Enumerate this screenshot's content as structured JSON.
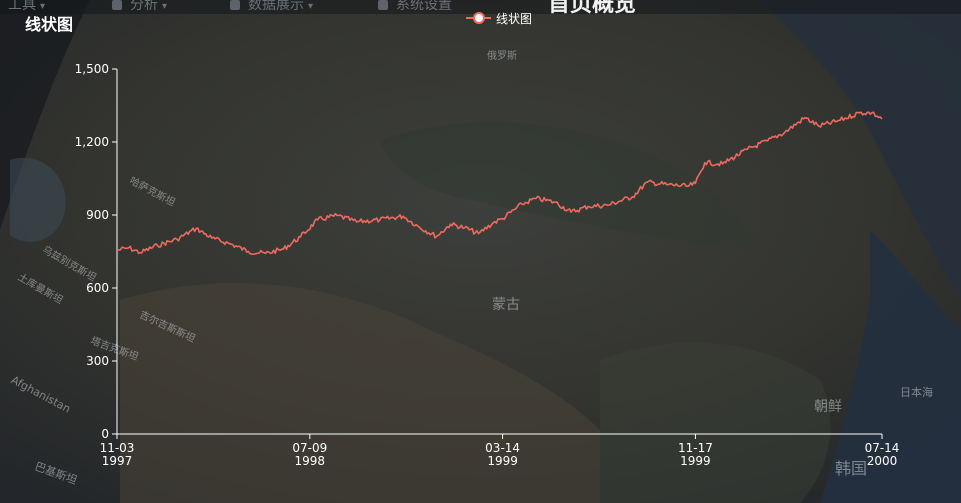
{
  "app": {
    "page_title": "首页概览",
    "menu": [
      {
        "label": "工具",
        "icon": "toolbox-icon"
      },
      {
        "label": "分析",
        "icon": "wrench-icon"
      },
      {
        "label": "数据展示",
        "icon": "bar-chart-icon"
      },
      {
        "label": "系统设置",
        "icon": "layers-icon"
      }
    ]
  },
  "map_labels": [
    "俄罗斯",
    "蒙古",
    "朝鲜",
    "韩国",
    "日本海",
    "Afghanistan",
    "哈萨克斯坦",
    "吉尔吉斯斯坦",
    "塔吉克斯坦",
    "巴基斯坦",
    "乌兹别克斯坦",
    "土库曼斯坦"
  ],
  "colors": {
    "series": "#ee6a5e",
    "axis": "#ffffff"
  },
  "chart_data": {
    "type": "line",
    "title": "线状图",
    "legend": [
      "线状图"
    ],
    "legend_position": "top-center",
    "x_start": "1997-11-03",
    "x_end": "2000-07-14",
    "xticks": [
      {
        "date": "1997-11-03",
        "line1": "11-03",
        "line2": "1997"
      },
      {
        "date": "1998-07-09",
        "line1": "07-09",
        "line2": "1998"
      },
      {
        "date": "1999-03-14",
        "line1": "03-14",
        "line2": "1999"
      },
      {
        "date": "1999-11-17",
        "line1": "11-17",
        "line2": "1999"
      },
      {
        "date": "2000-07-14",
        "line1": "07-14",
        "line2": "2000"
      }
    ],
    "ylim": [
      0,
      1500
    ],
    "yticks": [
      "0",
      "300",
      "600",
      "900",
      "1,200",
      "1,500"
    ],
    "grid": false,
    "series": [
      {
        "name": "线状图",
        "points": [
          [
            "1997-11-03",
            755
          ],
          [
            "1997-11-18",
            765
          ],
          [
            "1997-12-03",
            745
          ],
          [
            "1997-12-25",
            775
          ],
          [
            "1998-01-19",
            800
          ],
          [
            "1998-02-13",
            845
          ],
          [
            "1998-03-05",
            805
          ],
          [
            "1998-03-30",
            780
          ],
          [
            "1998-04-21",
            750
          ],
          [
            "1998-05-13",
            742
          ],
          [
            "1998-06-05",
            760
          ],
          [
            "1998-06-27",
            810
          ],
          [
            "1998-07-19",
            880
          ],
          [
            "1998-08-13",
            898
          ],
          [
            "1998-09-07",
            872
          ],
          [
            "1998-10-07",
            880
          ],
          [
            "1998-11-06",
            895
          ],
          [
            "1998-11-27",
            850
          ],
          [
            "1998-12-19",
            812
          ],
          [
            "1999-01-06",
            862
          ],
          [
            "1999-01-24",
            848
          ],
          [
            "1999-02-11",
            823
          ],
          [
            "1999-03-02",
            868
          ],
          [
            "1999-03-14",
            885
          ],
          [
            "1999-04-08",
            945
          ],
          [
            "1999-04-26",
            968
          ],
          [
            "1999-05-21",
            952
          ],
          [
            "1999-06-10",
            912
          ],
          [
            "1999-07-02",
            935
          ],
          [
            "1999-07-27",
            940
          ],
          [
            "1999-08-28",
            975
          ],
          [
            "1999-09-16",
            1035
          ],
          [
            "1999-10-11",
            1025
          ],
          [
            "1999-11-07",
            1018
          ],
          [
            "1999-11-17",
            1030
          ],
          [
            "1999-11-29",
            1115
          ],
          [
            "1999-12-22",
            1110
          ],
          [
            "2000-01-23",
            1170
          ],
          [
            "2000-02-18",
            1205
          ],
          [
            "2000-03-11",
            1240
          ],
          [
            "2000-04-06",
            1300
          ],
          [
            "2000-04-24",
            1265
          ],
          [
            "2000-05-17",
            1285
          ],
          [
            "2000-06-15",
            1320
          ],
          [
            "2000-07-01",
            1320
          ],
          [
            "2000-07-14",
            1295
          ]
        ]
      }
    ]
  }
}
